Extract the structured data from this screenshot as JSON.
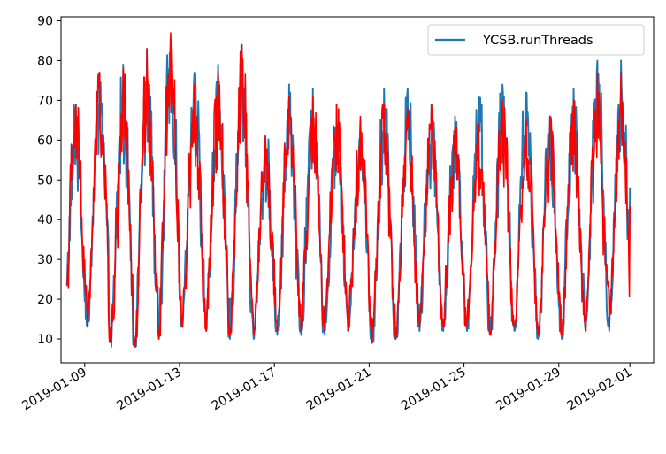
{
  "chart_data": {
    "type": "line",
    "title": "",
    "xlabel": "",
    "ylabel": "",
    "x_range": [
      "2019-01-08",
      "2019-02-02"
    ],
    "ylim": [
      4,
      91
    ],
    "x_tick_labels": [
      "2019-01-09",
      "2019-01-13",
      "2019-01-17",
      "2019-01-21",
      "2019-01-25",
      "2019-01-29",
      "2019-02-01"
    ],
    "y_tick_labels": [
      "10",
      "20",
      "30",
      "40",
      "50",
      "60",
      "70",
      "80",
      "90"
    ],
    "grid": false,
    "legend_position": "top-right",
    "series": [
      {
        "name": "YCSB.runThreads",
        "color": "#1f77b4",
        "daily": [
          {
            "date": "2019-01-08",
            "min": 10,
            "max": 69
          },
          {
            "date": "2019-01-09",
            "min": 13,
            "max": 77
          },
          {
            "date": "2019-01-10",
            "min": 9,
            "max": 79
          },
          {
            "date": "2019-01-11",
            "min": 8,
            "max": 83
          },
          {
            "date": "2019-01-12",
            "min": 10,
            "max": 86
          },
          {
            "date": "2019-01-13",
            "min": 13,
            "max": 77
          },
          {
            "date": "2019-01-14",
            "min": 12,
            "max": 79
          },
          {
            "date": "2019-01-15",
            "min": 10,
            "max": 84
          },
          {
            "date": "2019-01-16",
            "min": 10,
            "max": 61
          },
          {
            "date": "2019-01-17",
            "min": 11,
            "max": 74
          },
          {
            "date": "2019-01-18",
            "min": 11,
            "max": 73
          },
          {
            "date": "2019-01-19",
            "min": 11,
            "max": 69
          },
          {
            "date": "2019-01-20",
            "min": 12,
            "max": 65
          },
          {
            "date": "2019-01-21",
            "min": 9,
            "max": 73
          },
          {
            "date": "2019-01-22",
            "min": 10,
            "max": 73
          },
          {
            "date": "2019-01-23",
            "min": 12,
            "max": 69
          },
          {
            "date": "2019-01-24",
            "min": 12,
            "max": 66
          },
          {
            "date": "2019-01-25",
            "min": 12,
            "max": 71
          },
          {
            "date": "2019-01-26",
            "min": 11,
            "max": 74
          },
          {
            "date": "2019-01-27",
            "min": 12,
            "max": 72
          },
          {
            "date": "2019-01-28",
            "min": 10,
            "max": 66
          },
          {
            "date": "2019-01-29",
            "min": 10,
            "max": 73
          },
          {
            "date": "2019-01-30",
            "min": 12,
            "max": 80
          },
          {
            "date": "2019-01-31",
            "min": 12,
            "max": 80
          },
          {
            "date": "2019-02-01",
            "min": 35,
            "max": 75
          }
        ]
      },
      {
        "name": "",
        "color": "#ff0000",
        "daily": [
          {
            "date": "2019-01-08",
            "min": 11,
            "max": 69
          },
          {
            "date": "2019-01-09",
            "min": 13,
            "max": 77
          },
          {
            "date": "2019-01-10",
            "min": 8,
            "max": 78
          },
          {
            "date": "2019-01-11",
            "min": 8,
            "max": 83
          },
          {
            "date": "2019-01-12",
            "min": 10,
            "max": 87
          },
          {
            "date": "2019-01-13",
            "min": 13,
            "max": 74
          },
          {
            "date": "2019-01-14",
            "min": 12,
            "max": 77
          },
          {
            "date": "2019-01-15",
            "min": 11,
            "max": 84
          },
          {
            "date": "2019-01-16",
            "min": 11,
            "max": 61
          },
          {
            "date": "2019-01-17",
            "min": 12,
            "max": 71
          },
          {
            "date": "2019-01-18",
            "min": 12,
            "max": 71
          },
          {
            "date": "2019-01-19",
            "min": 12,
            "max": 69
          },
          {
            "date": "2019-01-20",
            "min": 12,
            "max": 66
          },
          {
            "date": "2019-01-21",
            "min": 9,
            "max": 69
          },
          {
            "date": "2019-01-22",
            "min": 10,
            "max": 68
          },
          {
            "date": "2019-01-23",
            "min": 13,
            "max": 69
          },
          {
            "date": "2019-01-24",
            "min": 13,
            "max": 64
          },
          {
            "date": "2019-01-25",
            "min": 13,
            "max": 64
          },
          {
            "date": "2019-01-26",
            "min": 11,
            "max": 70
          },
          {
            "date": "2019-01-27",
            "min": 13,
            "max": 65
          },
          {
            "date": "2019-01-28",
            "min": 11,
            "max": 66
          },
          {
            "date": "2019-01-29",
            "min": 11,
            "max": 70
          },
          {
            "date": "2019-01-30",
            "min": 12,
            "max": 77
          },
          {
            "date": "2019-01-31",
            "min": 12,
            "max": 77
          },
          {
            "date": "2019-02-01",
            "min": 40,
            "max": 74
          }
        ]
      }
    ]
  }
}
